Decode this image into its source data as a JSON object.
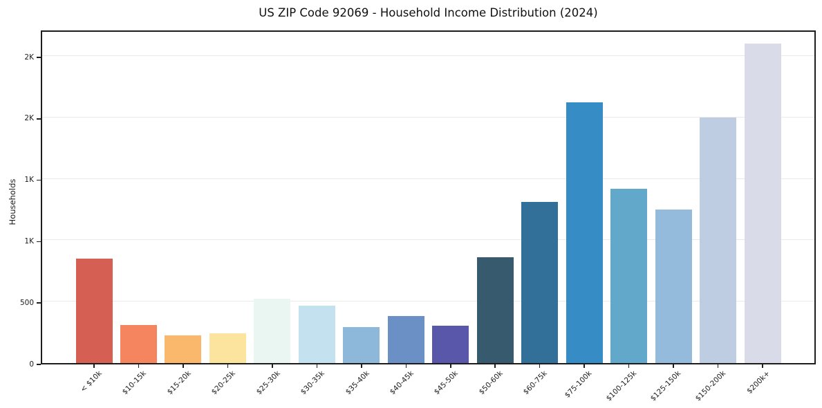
{
  "title": "US ZIP Code 92069 - Household Income Distribution (2024)",
  "chart_data": {
    "type": "bar",
    "title": "US ZIP Code 92069 - Household Income Distribution (2024)",
    "xlabel": "",
    "ylabel": "Households",
    "categories": [
      "< $10k",
      "$10-15k",
      "$15-20k",
      "$20-25k",
      "$25-30k",
      "$30-35k",
      "$35-40k",
      "$40-45k",
      "$45-50k",
      "$50-60k",
      "$60-75k",
      "$75-100k",
      "$100-125k",
      "$125-150k",
      "$150-200k",
      "$200k+"
    ],
    "values": [
      850,
      310,
      225,
      240,
      525,
      470,
      295,
      385,
      305,
      860,
      1315,
      2125,
      1420,
      1250,
      2000,
      2600
    ],
    "bar_colors": [
      "#d65f53",
      "#f5855f",
      "#fab86d",
      "#fce39e",
      "#eaf6f1",
      "#c3e1ee",
      "#8db8d9",
      "#6a90c5",
      "#5857a9",
      "#375a6e",
      "#327099",
      "#368dc5",
      "#61a8cb",
      "#94bbdb",
      "#bfcde2",
      "#d9dbe9"
    ],
    "ylim": [
      0,
      2720
    ],
    "ytick_values": [
      0,
      500,
      1000,
      1500,
      2000,
      2500
    ],
    "ytick_labels": [
      "0",
      "500",
      "1K",
      "1K",
      "2K",
      "2K"
    ],
    "grid": "horizontal",
    "gridline_color": "#e9e9e9",
    "axis_frame_color": "#1c1c1c",
    "legend": "none"
  }
}
